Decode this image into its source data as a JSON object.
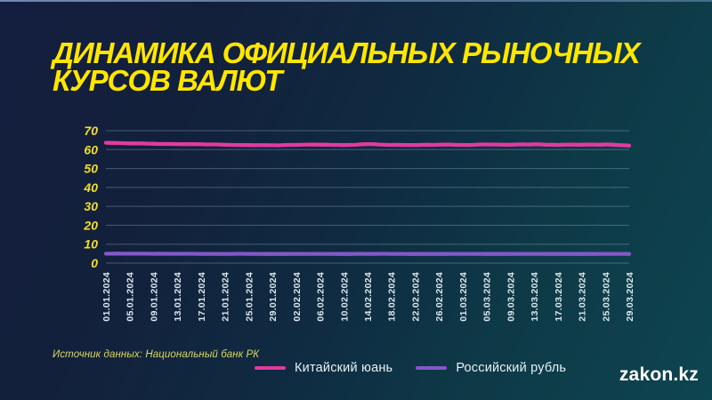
{
  "title_lines": [
    "ДИНАМИКА ОФИЦИАЛЬНЫХ РЫНОЧНЫХ",
    "КУРСОВ ВАЛЮТ"
  ],
  "source_note": "Источник данных: Национальный банк РК",
  "watermark": "zakon.kz",
  "colors": {
    "background_top_left": "#141e3e",
    "background_bottom_right": "#0d4550",
    "title_yellow": "#ffe600",
    "axis_tick_yellow": "#f3df1d",
    "gridline": "#9db8cc",
    "x_label": "#dde8ee",
    "legend_text": "#e9f1f5",
    "source_text": "#dcd75f",
    "yuan_pink": "#e23a9e",
    "ruble_purple": "#8458c9"
  },
  "legend": [
    {
      "label": "Китайский юань",
      "color": "#e23a9e"
    },
    {
      "label": "Российский рубль",
      "color": "#8458c9"
    }
  ],
  "chart_data": {
    "type": "line",
    "title": "",
    "xlabel": "",
    "ylabel": "",
    "ylim": [
      0,
      70
    ],
    "yticks": [
      0,
      10,
      20,
      30,
      40,
      50,
      60,
      70
    ],
    "grid": "horizontal",
    "legend_position": "bottom",
    "categories": [
      "01.01.2024",
      "05.01.2024",
      "09.01.2024",
      "13.01.2024",
      "17.01.2024",
      "21.01.2024",
      "25.01.2024",
      "29.01.2024",
      "02.02.2024",
      "06.02.2024",
      "10.02.2024",
      "14.02.2024",
      "18.02.2024",
      "22.02.2024",
      "26.02.2024",
      "01.03.2024",
      "05.03.2024",
      "09.03.2024",
      "13.03.2024",
      "17.03.2024",
      "21.03.2024",
      "25.03.2024",
      "29.03.2024"
    ],
    "series": [
      {
        "name": "Китайский юань",
        "color": "#e23a9e",
        "values": [
          63.6,
          63.3,
          63.1,
          62.9,
          62.8,
          62.6,
          62.4,
          62.3,
          62.5,
          62.6,
          62.4,
          62.9,
          62.5,
          62.4,
          62.6,
          62.5,
          62.7,
          62.6,
          62.8,
          62.5,
          62.6,
          62.7,
          62.1
        ]
      },
      {
        "name": "Российский рубль",
        "color": "#8458c9",
        "values": [
          5.0,
          5.0,
          4.95,
          4.95,
          4.9,
          4.9,
          4.9,
          4.85,
          4.9,
          4.9,
          4.85,
          4.9,
          4.9,
          4.85,
          4.85,
          4.9,
          4.85,
          4.85,
          4.9,
          4.85,
          4.85,
          4.9,
          4.85
        ]
      }
    ]
  }
}
